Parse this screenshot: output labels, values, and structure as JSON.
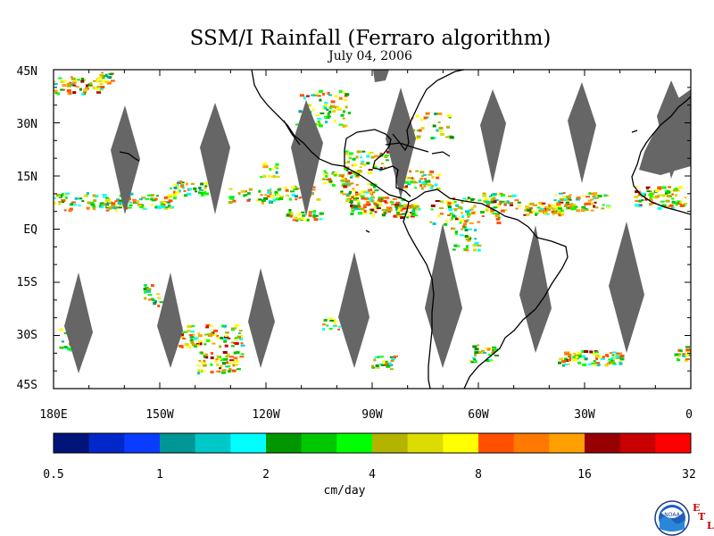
{
  "title": "SSM/I Rainfall (Ferraro algorithm)",
  "date": "July 04, 2006",
  "lat_labels": [
    "45N",
    "30N",
    "15N",
    "EQ",
    "15S",
    "30S",
    "45S"
  ],
  "lon_labels": [
    "180E",
    "150W",
    "120W",
    "90W",
    "60W",
    "30W",
    "0"
  ],
  "colorbar": {
    "unit": "cm/day",
    "tick_labels": [
      "0.5",
      "1",
      "2",
      "4",
      "8",
      "16",
      "32"
    ],
    "colors": [
      "#00147a",
      "#0028c8",
      "#0a3cff",
      "#009696",
      "#00c8c8",
      "#00ffff",
      "#009600",
      "#00c800",
      "#00ff00",
      "#b4b400",
      "#dcdc00",
      "#ffff00",
      "#ff5000",
      "#ff7800",
      "#ffa000",
      "#960000",
      "#c80000",
      "#ff0000"
    ]
  },
  "map": {
    "lon_range": [
      -180,
      0
    ],
    "lat_range": [
      -45,
      45
    ],
    "missing_data_color": "#666666",
    "coastline_color": "#000000",
    "land_color": "#ffffff"
  },
  "logo": {
    "icon": "noaa-logo-icon",
    "logo_text": "NOAA",
    "lab_letters": [
      "E",
      "T",
      "L"
    ]
  }
}
